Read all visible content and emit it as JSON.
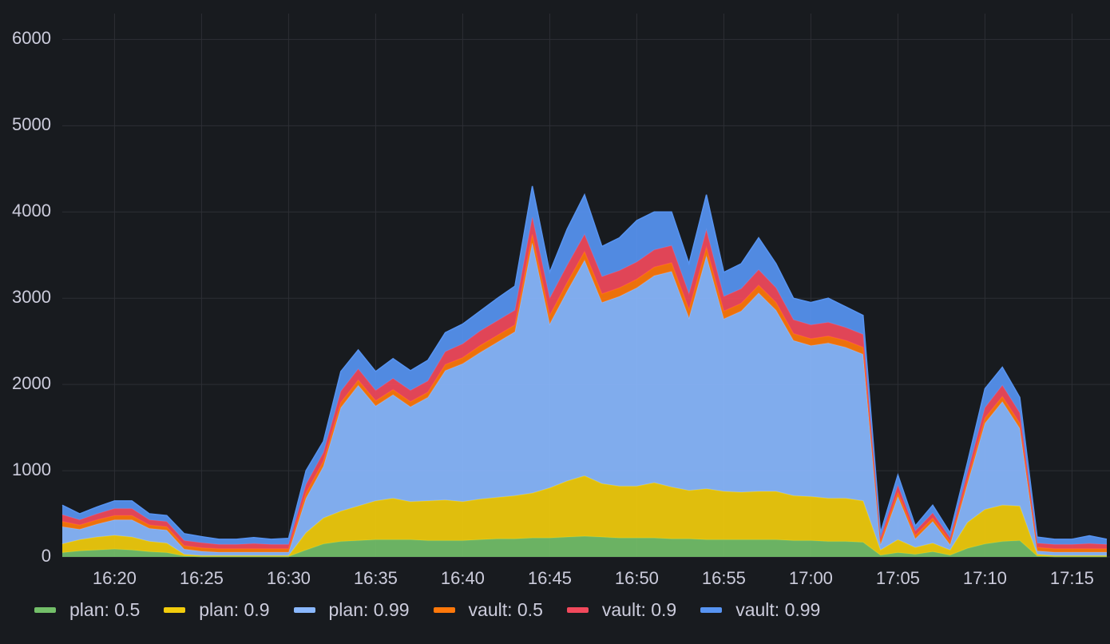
{
  "chart_data": {
    "type": "stacked-area",
    "x": [
      "16:17",
      "16:18",
      "16:19",
      "16:20",
      "16:21",
      "16:22",
      "16:23",
      "16:24",
      "16:25",
      "16:26",
      "16:27",
      "16:28",
      "16:29",
      "16:30",
      "16:31",
      "16:32",
      "16:33",
      "16:34",
      "16:35",
      "16:36",
      "16:37",
      "16:38",
      "16:39",
      "16:40",
      "16:41",
      "16:42",
      "16:43",
      "16:44",
      "16:45",
      "16:46",
      "16:47",
      "16:48",
      "16:49",
      "16:50",
      "16:51",
      "16:52",
      "16:53",
      "16:54",
      "16:55",
      "16:56",
      "16:57",
      "16:58",
      "16:59",
      "17:00",
      "17:01",
      "17:02",
      "17:03",
      "17:04",
      "17:05",
      "17:06",
      "17:07",
      "17:08",
      "17:09",
      "17:10",
      "17:11",
      "17:12",
      "17:13",
      "17:14",
      "17:15",
      "17:16",
      "17:17"
    ],
    "series": [
      {
        "name": "plan: 0.5",
        "color": "#73bf69",
        "values": [
          50,
          70,
          80,
          90,
          80,
          60,
          50,
          10,
          5,
          5,
          5,
          5,
          5,
          5,
          80,
          150,
          180,
          190,
          200,
          200,
          200,
          190,
          190,
          190,
          200,
          210,
          210,
          220,
          220,
          230,
          240,
          230,
          220,
          220,
          220,
          210,
          210,
          200,
          200,
          200,
          200,
          200,
          190,
          190,
          180,
          180,
          170,
          20,
          50,
          30,
          60,
          20,
          100,
          150,
          180,
          190,
          10,
          5,
          5,
          5,
          5
        ]
      },
      {
        "name": "plan: 0.9",
        "color": "#f2cc0c",
        "values": [
          100,
          130,
          150,
          160,
          150,
          120,
          110,
          20,
          10,
          10,
          10,
          10,
          10,
          10,
          200,
          300,
          350,
          400,
          450,
          480,
          440,
          460,
          470,
          450,
          470,
          480,
          500,
          520,
          580,
          650,
          700,
          620,
          600,
          600,
          640,
          600,
          560,
          590,
          560,
          550,
          560,
          560,
          520,
          510,
          500,
          500,
          480,
          60,
          150,
          80,
          100,
          60,
          300,
          400,
          420,
          400,
          20,
          10,
          10,
          10,
          10
        ]
      },
      {
        "name": "plan: 0.99",
        "color": "#8ab8ff",
        "values": [
          200,
          120,
          150,
          180,
          200,
          150,
          150,
          60,
          50,
          40,
          40,
          40,
          40,
          40,
          400,
          600,
          1200,
          1400,
          1100,
          1200,
          1100,
          1200,
          1500,
          1600,
          1700,
          1800,
          1900,
          2900,
          1900,
          2200,
          2500,
          2100,
          2200,
          2300,
          2400,
          2500,
          2000,
          2700,
          2000,
          2100,
          2300,
          2100,
          1800,
          1750,
          1800,
          1750,
          1700,
          60,
          500,
          100,
          250,
          60,
          450,
          1000,
          1200,
          900,
          40,
          40,
          40,
          40,
          40
        ]
      },
      {
        "name": "vault: 0.5",
        "color": "#ff780a",
        "values": [
          60,
          50,
          50,
          50,
          50,
          40,
          40,
          40,
          40,
          40,
          40,
          40,
          40,
          40,
          60,
          60,
          60,
          60,
          60,
          60,
          60,
          60,
          70,
          70,
          80,
          80,
          80,
          100,
          100,
          100,
          100,
          100,
          100,
          100,
          100,
          100,
          100,
          100,
          90,
          90,
          90,
          90,
          80,
          80,
          80,
          80,
          80,
          40,
          50,
          40,
          40,
          40,
          50,
          60,
          60,
          60,
          40,
          40,
          40,
          40,
          40
        ]
      },
      {
        "name": "vault: 0.9",
        "color": "#f2495c",
        "values": [
          80,
          60,
          70,
          80,
          80,
          60,
          60,
          60,
          60,
          50,
          50,
          60,
          50,
          50,
          100,
          100,
          130,
          130,
          120,
          130,
          130,
          130,
          150,
          160,
          170,
          170,
          170,
          200,
          200,
          200,
          200,
          200,
          200,
          200,
          200,
          200,
          180,
          200,
          170,
          170,
          180,
          170,
          160,
          160,
          160,
          150,
          150,
          40,
          80,
          50,
          60,
          40,
          80,
          120,
          130,
          120,
          50,
          50,
          50,
          60,
          50
        ]
      },
      {
        "name": "vault: 0.99",
        "color": "#5794f2",
        "values": [
          110,
          70,
          80,
          90,
          90,
          70,
          70,
          80,
          70,
          60,
          60,
          70,
          60,
          70,
          160,
          130,
          230,
          220,
          220,
          230,
          230,
          240,
          220,
          230,
          230,
          260,
          280,
          360,
          300,
          420,
          460,
          350,
          380,
          480,
          440,
          390,
          350,
          410,
          280,
          290,
          370,
          280,
          250,
          260,
          280,
          240,
          220,
          60,
          120,
          60,
          90,
          60,
          120,
          220,
          210,
          180,
          70,
          60,
          60,
          90,
          60
        ]
      }
    ],
    "xlim": [
      "16:17",
      "17:17"
    ],
    "xticks": [
      "16:20",
      "16:25",
      "16:30",
      "16:35",
      "16:40",
      "16:45",
      "16:50",
      "16:55",
      "17:00",
      "17:05",
      "17:10",
      "17:15"
    ],
    "ylim": [
      0,
      6300
    ],
    "yticks": [
      0,
      1000,
      2000,
      3000,
      4000,
      5000,
      6000
    ],
    "grid": true,
    "legend": "bottom"
  }
}
